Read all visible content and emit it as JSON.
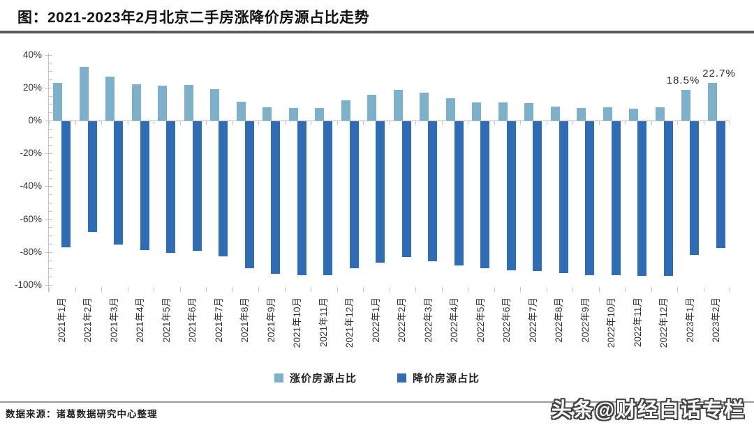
{
  "header": {
    "title": "图：2021-2023年2月北京二手房涨降价房源占比走势"
  },
  "chart_data": {
    "type": "bar",
    "title": "图：2021-2023年2月北京二手房涨降价房源占比走势",
    "categories": [
      "2021年1月",
      "2021年2月",
      "2021年3月",
      "2021年4月",
      "2021年5月",
      "2021年6月",
      "2021年7月",
      "2021年8月",
      "2021年9月",
      "2021年10月",
      "2021年11月",
      "2021年12月",
      "2022年1月",
      "2022年2月",
      "2022年3月",
      "2022年4月",
      "2022年5月",
      "2022年6月",
      "2022年7月",
      "2022年8月",
      "2022年9月",
      "2022年10月",
      "2022年11月",
      "2022年12月",
      "2023年1月",
      "2023年2月"
    ],
    "series": [
      {
        "name": "涨价房源占比",
        "color": "#7DB1C9",
        "values": [
          23,
          32.5,
          26.5,
          22,
          21,
          21.5,
          19,
          11.5,
          8,
          7.5,
          7.5,
          12.5,
          15.5,
          18.5,
          17,
          13.5,
          11,
          11,
          10.5,
          8.5,
          7.5,
          8,
          7,
          8,
          18.5,
          22.7
        ]
      },
      {
        "name": "降价房源占比",
        "color": "#2E6DB5",
        "values": [
          -76.5,
          -67.5,
          -75,
          -78.5,
          -80,
          -79,
          -82,
          -89.5,
          -93,
          -93.5,
          -93.5,
          -89.5,
          -86,
          -82.5,
          -85,
          -87.5,
          -89.5,
          -90.5,
          -91,
          -92.5,
          -93.5,
          -93.5,
          -94,
          -94,
          -81.5,
          -77.3
        ]
      }
    ],
    "ylim": [
      -100,
      40
    ],
    "yticks": [
      {
        "value": 40,
        "label": "40%"
      },
      {
        "value": 20,
        "label": "20%"
      },
      {
        "value": 0,
        "label": "0%"
      },
      {
        "value": -20,
        "label": "-20%"
      },
      {
        "value": -40,
        "label": "-40%"
      },
      {
        "value": -60,
        "label": "-60%"
      },
      {
        "value": -80,
        "label": "-80%"
      },
      {
        "value": -100,
        "label": "-100%"
      }
    ],
    "xlabel": "",
    "ylabel": "",
    "grid": false,
    "legend_position": "bottom",
    "annotations": [
      {
        "category": "2023年1月",
        "index": 24,
        "series": "涨价房源占比",
        "text": "18.5%"
      },
      {
        "category": "2023年2月",
        "index": 25,
        "series": "涨价房源占比",
        "text": "22.7%"
      }
    ]
  },
  "legend": {
    "items": [
      {
        "label": "涨价房源占比",
        "color": "#7DB1C9"
      },
      {
        "label": "降价房源占比",
        "color": "#2E6DB5"
      }
    ]
  },
  "footer": {
    "source": "数据来源：诸葛数据研究中心整理",
    "watermark": "头条@财经白话专栏"
  }
}
